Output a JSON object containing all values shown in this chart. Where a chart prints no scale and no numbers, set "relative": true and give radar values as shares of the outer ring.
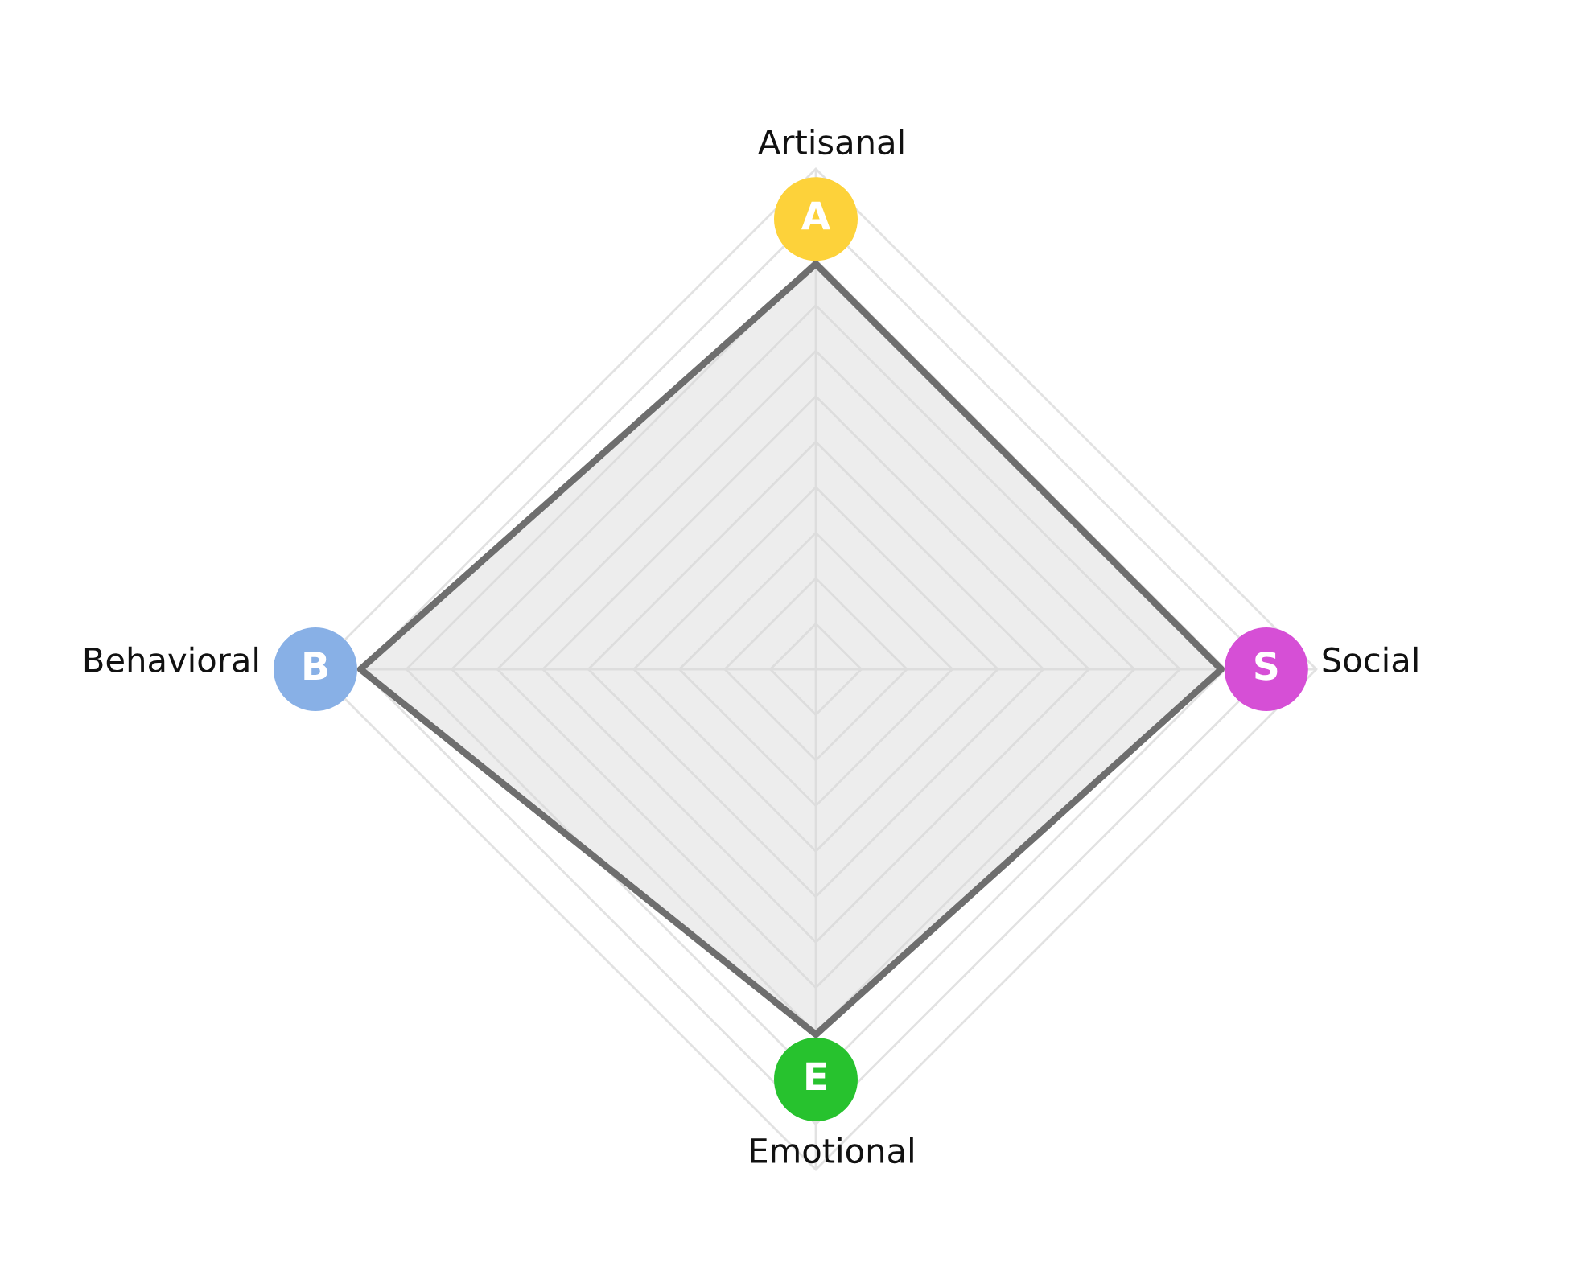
{
  "chart_data": {
    "type": "radar",
    "relative": true,
    "categories": [
      "Artisanal",
      "Social",
      "Emotional",
      "Behavioral"
    ],
    "series": [
      {
        "color": "#6e6e6e",
        "values": [
          0.81,
          0.81,
          0.73,
          0.91
        ]
      }
    ],
    "colors": [
      "#fdd23a",
      "#d64fd6",
      "#27c22e",
      "#88b0e6"
    ],
    "annotations": [
      "A",
      "S",
      "E",
      "B"
    ]
  }
}
